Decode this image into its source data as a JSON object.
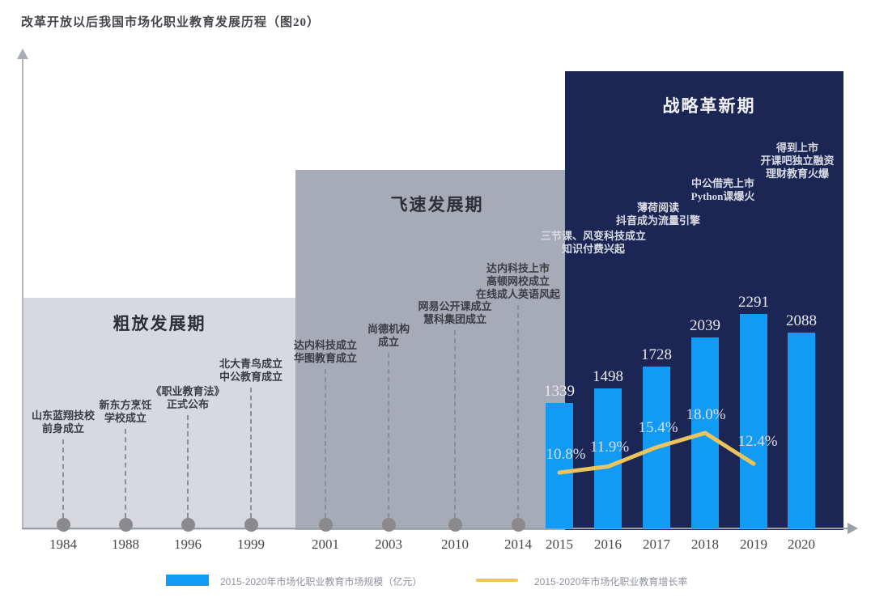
{
  "title": "改革开放以后我国市场化职业教育发展历程（图20）",
  "phases": [
    {
      "id": "extensive",
      "name": "粗放发展期",
      "color": "#d7d9de"
    },
    {
      "id": "rapid",
      "name": "飞速发展期",
      "color": "#a7aab7"
    },
    {
      "id": "strategic",
      "name": "战略革新期",
      "color": "#1c2654"
    }
  ],
  "timeline": {
    "years": [
      "1984",
      "1988",
      "1996",
      "1999",
      "2001",
      "2003",
      "2010",
      "2014",
      "2015",
      "2016",
      "2017",
      "2018",
      "2019",
      "2020"
    ],
    "events": [
      {
        "year": "1984",
        "lines": [
          "山东蓝翔技校",
          "前身成立"
        ]
      },
      {
        "year": "1988",
        "lines": [
          "新东方烹饪",
          "学校成立"
        ]
      },
      {
        "year": "1996",
        "lines": [
          "《职业教育法》",
          "正式公布"
        ]
      },
      {
        "year": "1999",
        "lines": [
          "北大青鸟成立",
          "中公教育成立"
        ]
      },
      {
        "year": "2001",
        "lines": [
          "达内科技成立",
          "华图教育成立"
        ]
      },
      {
        "year": "2003",
        "lines": [
          "尚德机构",
          "成立"
        ]
      },
      {
        "year": "2010",
        "lines": [
          "网易公开课成立",
          "慧科集团成立"
        ]
      },
      {
        "year": "2014",
        "lines": [
          "达内科技上市",
          "高顿网校成立",
          "在线成人英语风起"
        ]
      }
    ],
    "strategic_events": [
      {
        "lines": [
          "三节课、风变科技成立",
          "知识付费兴起"
        ]
      },
      {
        "lines": [
          "薄荷阅读",
          "抖音成为流量引擎"
        ]
      },
      {
        "lines": [
          "中公借壳上市",
          "Python课爆火"
        ]
      },
      {
        "lines": [
          "得到上市",
          "开课吧独立融资",
          "理财教育火爆"
        ]
      }
    ]
  },
  "chart_data": {
    "type": "bar+line",
    "title": "改革开放以后我国市场化职业教育发展历程（图20）",
    "categories": [
      "2015",
      "2016",
      "2017",
      "2018",
      "2019",
      "2020"
    ],
    "series": [
      {
        "name": "2015-2020年市场化职业教育市场规模（亿元）",
        "type": "bar",
        "values": [
          1339,
          1498,
          1728,
          2039,
          2291,
          2088
        ],
        "color": "#129bf4"
      },
      {
        "name": "2015-2020年市场化职业教育增长率",
        "type": "line",
        "x": [
          "2015",
          "2016",
          "2017",
          "2018",
          "2019"
        ],
        "values": [
          10.8,
          11.9,
          15.4,
          18.0,
          12.4
        ],
        "unit": "%",
        "color": "#edc45c"
      }
    ],
    "legend_position": "bottom",
    "grid": false
  },
  "legend": [
    {
      "swatch": "bar",
      "label": "2015-2020年市场化职业教育市场规模（亿元）"
    },
    {
      "swatch": "line",
      "label": "2015-2020年市场化职业教育增长率"
    }
  ],
  "colors": {
    "bar": "#129bf4",
    "line": "#edc45c",
    "phase_light": "#d7d9de",
    "phase_medium": "#a7aab7",
    "phase_dark": "#1c2654"
  }
}
